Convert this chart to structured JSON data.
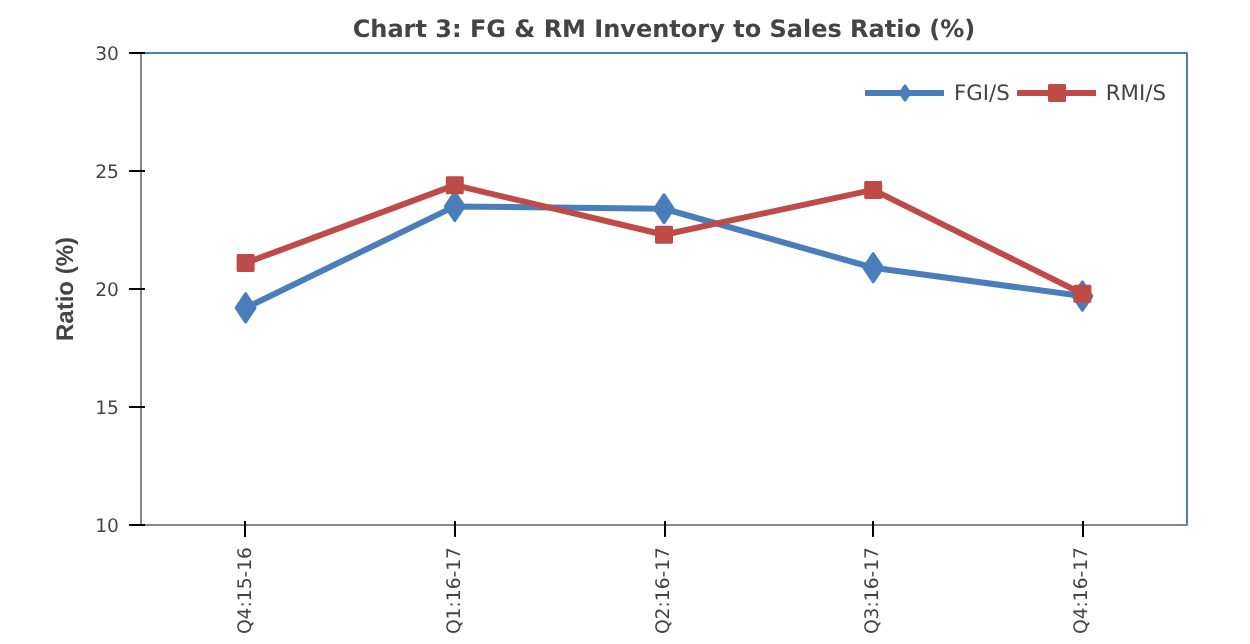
{
  "chart_data": {
    "type": "line",
    "title": "Chart 3: FG & RM Inventory to Sales Ratio (%)",
    "ylabel": "Ratio (%)",
    "categories": [
      "Q4:15-16",
      "Q1:16-17",
      "Q2:16-17",
      "Q3:16-17",
      "Q4:16-17"
    ],
    "series": [
      {
        "name": "FGI/S",
        "color": "#4a7ebb",
        "values": [
          19.2,
          23.5,
          23.4,
          20.9,
          19.7
        ],
        "marker": "diamond"
      },
      {
        "name": "RMI/S",
        "color": "#be4b48",
        "values": [
          21.1,
          24.4,
          22.3,
          24.2,
          19.8
        ],
        "marker": "square"
      }
    ],
    "ylim": [
      10,
      30
    ],
    "yticks": [
      10,
      15,
      20,
      25,
      30
    ],
    "grid": false,
    "legend": "top right",
    "line_style": "solid"
  }
}
